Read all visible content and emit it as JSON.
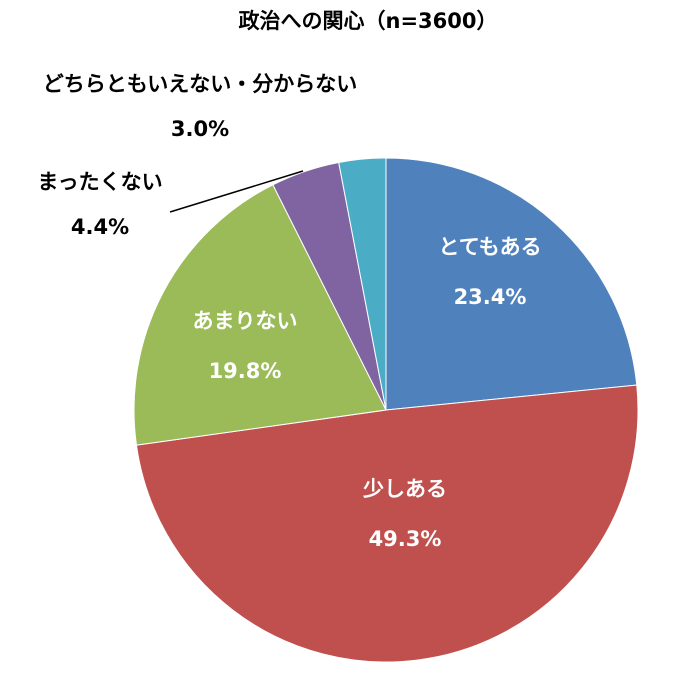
{
  "chart_data": {
    "type": "pie",
    "title": "政治への関心（n=3600）",
    "categories": [
      "とてもある",
      "少しある",
      "あまりない",
      "まったくない",
      "どちらともいえない・分からない"
    ],
    "values": [
      23.4,
      49.3,
      19.8,
      4.4,
      3.0
    ],
    "value_labels": [
      "23.4%",
      "49.3%",
      "19.8%",
      "4.4%",
      "3.0%"
    ],
    "colors": [
      "#4f81bd",
      "#c0504d",
      "#9bbb59",
      "#8064a2",
      "#4bacc6"
    ]
  }
}
